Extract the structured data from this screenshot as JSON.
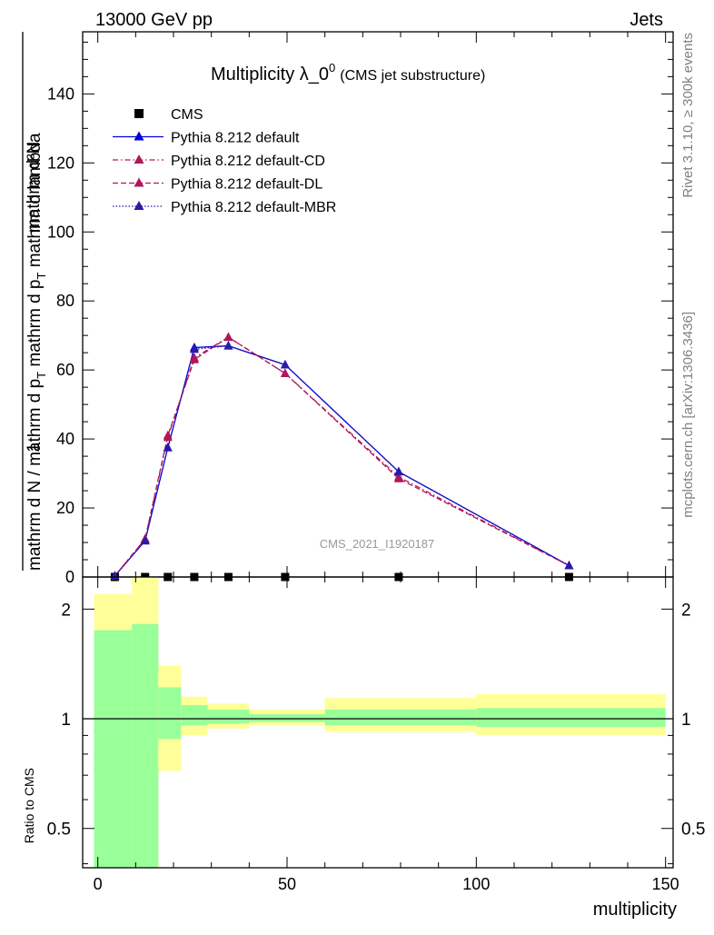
{
  "header": {
    "left": "13000 GeV pp",
    "right": "Jets"
  },
  "side_text": {
    "top": "Rivet 3.1.10, ≥ 300k events",
    "bottom": "mcplots.cern.ch [arXiv:1306.3436]"
  },
  "chart_data": {
    "type": "line",
    "title": {
      "main": "Multiplicity λ_0",
      "sup": "0",
      "sub": "(CMS jet substructure)"
    },
    "watermark": "CMS_2021_I1920187",
    "xlabel": "multiplicity",
    "ylabel": {
      "numerator_sup": "1",
      "numerator_tail": "mathrm d²N",
      "denominator_pre": "mathrm d N / mathrm d p",
      "denominator_sub": "T",
      "denominator_tail": "mathrm d p",
      "denominator_sub2": "T",
      "denominator_end": "mathrm d lambda"
    },
    "ratio_ylabel": "Ratio to CMS",
    "xlim": [
      -4,
      152
    ],
    "ylim": [
      0,
      158
    ],
    "ratio_ylim": [
      0.39,
      2.45
    ],
    "x_ticks": [
      0,
      50,
      100,
      150
    ],
    "y_ticks": [
      0,
      20,
      40,
      60,
      80,
      100,
      120,
      140
    ],
    "ratio_ticks": [
      {
        "value": 0.5,
        "label": "0.5"
      },
      {
        "value": 1,
        "label": "1"
      },
      {
        "value": 2,
        "label": "2"
      }
    ],
    "legend_position": "top-left",
    "series": [
      {
        "name": "CMS",
        "color": "#000000",
        "marker": "square",
        "line": "none",
        "x": [
          4.5,
          12.5,
          18.5,
          25.5,
          34.5,
          49.5,
          79.5,
          124.5
        ],
        "y": [
          0,
          0,
          0,
          0,
          0,
          0,
          0,
          0
        ]
      },
      {
        "name": "Pythia 8.212 default",
        "color": "#0000dd",
        "marker": "triangle",
        "line": "solid",
        "x": [
          4.5,
          12.5,
          18.5,
          25.5,
          34.5,
          49.5,
          79.5,
          124.5
        ],
        "y": [
          0.3,
          10.5,
          37.5,
          66.5,
          67.0,
          61.5,
          30.5,
          3.3
        ]
      },
      {
        "name": "Pythia 8.212 default-CD",
        "color": "#b0175a",
        "marker": "triangle",
        "line": "dashdot",
        "x": [
          4.5,
          12.5,
          18.5,
          25.5,
          34.5,
          49.5,
          79.5,
          124.5
        ],
        "y": [
          0.3,
          11.0,
          40.5,
          63.5,
          69.5,
          59.0,
          29.0,
          3.3
        ]
      },
      {
        "name": "Pythia 8.212 default-DL",
        "color": "#b0175a",
        "marker": "triangle",
        "line": "dashed",
        "x": [
          4.5,
          12.5,
          18.5,
          25.5,
          34.5,
          49.5,
          79.5,
          124.5
        ],
        "y": [
          0.3,
          11.0,
          41.0,
          63.0,
          69.5,
          59.0,
          28.5,
          3.3
        ]
      },
      {
        "name": "Pythia 8.212 default-MBR",
        "color": "#2a1aa8",
        "marker": "triangle",
        "line": "dotted",
        "x": [
          4.5,
          12.5,
          18.5,
          25.5,
          34.5,
          49.5,
          79.5,
          124.5
        ],
        "y": [
          0.3,
          10.5,
          37.5,
          66.0,
          67.0,
          61.5,
          30.5,
          3.3
        ]
      }
    ],
    "ratio_bands": {
      "edges": [
        -1,
        9,
        16,
        22,
        29,
        40,
        60,
        100,
        150
      ],
      "outer_color": "#ffff99",
      "inner_color": "#99ff99",
      "outer_low": [
        0.3,
        0.3,
        0.72,
        0.9,
        0.94,
        0.96,
        0.92,
        0.9
      ],
      "outer_high": [
        2.2,
        2.45,
        1.4,
        1.15,
        1.1,
        1.06,
        1.14,
        1.17
      ],
      "inner_low": [
        0.3,
        0.3,
        0.88,
        0.96,
        0.97,
        0.98,
        0.96,
        0.95
      ],
      "inner_high": [
        1.75,
        1.82,
        1.22,
        1.09,
        1.06,
        1.03,
        1.06,
        1.07
      ]
    }
  }
}
